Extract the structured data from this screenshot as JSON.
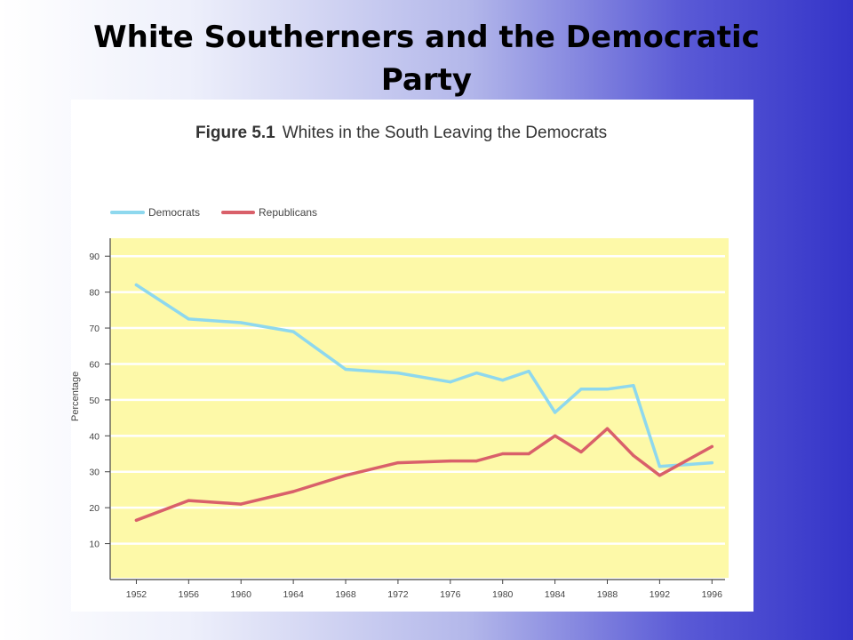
{
  "slide": {
    "title_line1": "White Southerners and the Democratic",
    "title_line2": "Party"
  },
  "figure": {
    "caption_number": "Figure 5.1",
    "caption_text": "Whites in the South Leaving the Democrats"
  },
  "colors": {
    "democrats": "#8ed8ee",
    "republicans": "#d9606a",
    "plot_background": "#fdf9a8",
    "gridline": "#ffffff"
  },
  "chart_data": {
    "type": "line",
    "title": "",
    "xlabel": "",
    "ylabel": "Percentage",
    "ylim": [
      0,
      95
    ],
    "xlim": [
      1950,
      1997
    ],
    "yticks": [
      10,
      20,
      30,
      40,
      50,
      60,
      70,
      80,
      90
    ],
    "xticks": [
      1952,
      1956,
      1960,
      1964,
      1968,
      1972,
      1976,
      1980,
      1984,
      1988,
      1992,
      1996
    ],
    "grid": true,
    "legend_position": "top-left",
    "series": [
      {
        "name": "Democrats",
        "x": [
          1952,
          1956,
          1960,
          1964,
          1968,
          1972,
          1976,
          1978,
          1980,
          1982,
          1984,
          1986,
          1988,
          1990,
          1992,
          1994,
          1996
        ],
        "y": [
          82,
          72.5,
          71.5,
          69,
          58.5,
          57.5,
          55,
          57.5,
          55.5,
          58,
          46.5,
          53,
          53,
          54,
          31.5,
          32,
          32.5
        ]
      },
      {
        "name": "Republicans",
        "x": [
          1952,
          1956,
          1960,
          1964,
          1968,
          1972,
          1976,
          1978,
          1980,
          1982,
          1984,
          1986,
          1988,
          1990,
          1992,
          1994,
          1996
        ],
        "y": [
          16.5,
          22,
          21,
          24.5,
          29,
          32.5,
          33,
          33,
          35,
          35,
          40,
          35.5,
          42,
          34.5,
          29,
          33,
          37
        ]
      }
    ]
  }
}
